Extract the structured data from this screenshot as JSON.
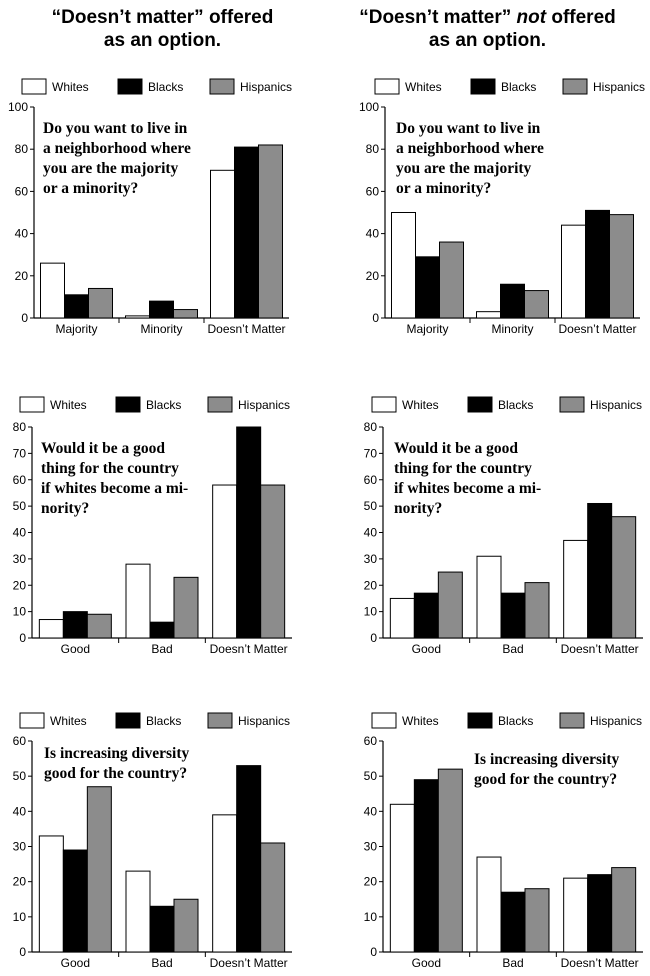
{
  "column_titles": [
    {
      "line1_start": "“Doesn’t matter”",
      "line1_em": "",
      "line1_end": " offered",
      "line2": "as an option."
    },
    {
      "line1_start": "“Doesn’t matter”",
      "line1_em": "not",
      "line1_end": " offered",
      "line2": "as an option."
    }
  ],
  "legend": [
    {
      "name": "Whites",
      "color": "#ffffff"
    },
    {
      "name": "Blacks",
      "color": "#000000"
    },
    {
      "name": "Hispanics",
      "color": "#8c8c8c"
    }
  ],
  "chart_data": [
    {
      "type": "bar",
      "question": [
        "Do you want to live in",
        "a neighborhood where",
        "you are the majority",
        "or a minority?"
      ],
      "categories": [
        "Majority",
        "Minority",
        "Doesn’t Matter"
      ],
      "ylim": [
        0,
        100
      ],
      "yticks": [
        0,
        20,
        40,
        60,
        80,
        100
      ],
      "series": [
        {
          "name": "Whites",
          "values": [
            26,
            1,
            70
          ]
        },
        {
          "name": "Blacks",
          "values": [
            11,
            8,
            81
          ]
        },
        {
          "name": "Hispanics",
          "values": [
            14,
            4,
            82
          ]
        }
      ]
    },
    {
      "type": "bar",
      "question": [
        "Do you want to live in",
        "a neighborhood where",
        "you are the majority",
        "or a minority?"
      ],
      "categories": [
        "Majority",
        "Minority",
        "Doesn’t Matter"
      ],
      "ylim": [
        0,
        100
      ],
      "yticks": [
        0,
        20,
        40,
        60,
        80,
        100
      ],
      "series": [
        {
          "name": "Whites",
          "values": [
            50,
            3,
            44
          ]
        },
        {
          "name": "Blacks",
          "values": [
            29,
            16,
            51
          ]
        },
        {
          "name": "Hispanics",
          "values": [
            36,
            13,
            49
          ]
        }
      ]
    },
    {
      "type": "bar",
      "question": [
        "Would it be a good",
        "thing for the country",
        "if whites become a mi-",
        "nority?"
      ],
      "categories": [
        "Good",
        "Bad",
        "Doesn’t Matter"
      ],
      "ylim": [
        0,
        80
      ],
      "yticks": [
        0,
        10,
        20,
        30,
        40,
        50,
        60,
        70,
        80
      ],
      "series": [
        {
          "name": "Whites",
          "values": [
            7,
            28,
            58
          ]
        },
        {
          "name": "Blacks",
          "values": [
            10,
            6,
            80
          ]
        },
        {
          "name": "Hispanics",
          "values": [
            9,
            23,
            58
          ]
        }
      ]
    },
    {
      "type": "bar",
      "question": [
        "Would it be a good",
        "thing for the country",
        "if whites become a mi-",
        "nority?"
      ],
      "categories": [
        "Good",
        "Bad",
        "Doesn’t Matter"
      ],
      "ylim": [
        0,
        80
      ],
      "yticks": [
        0,
        10,
        20,
        30,
        40,
        50,
        60,
        70,
        80
      ],
      "series": [
        {
          "name": "Whites",
          "values": [
            15,
            31,
            37
          ]
        },
        {
          "name": "Blacks",
          "values": [
            17,
            17,
            51
          ]
        },
        {
          "name": "Hispanics",
          "values": [
            25,
            21,
            46
          ]
        }
      ]
    },
    {
      "type": "bar",
      "question": [
        "Is increasing diversity",
        "good for the country?"
      ],
      "categories": [
        "Good",
        "Bad",
        "Doesn’t Matter"
      ],
      "ylim": [
        0,
        60
      ],
      "yticks": [
        0,
        10,
        20,
        30,
        40,
        50,
        60
      ],
      "series": [
        {
          "name": "Whites",
          "values": [
            33,
            23,
            39
          ]
        },
        {
          "name": "Blacks",
          "values": [
            29,
            13,
            53
          ]
        },
        {
          "name": "Hispanics",
          "values": [
            47,
            15,
            31
          ]
        }
      ]
    },
    {
      "type": "bar",
      "question": [
        "Is increasing diversity",
        "good for the country?"
      ],
      "categories": [
        "Good",
        "Bad",
        "Doesn’t Matter"
      ],
      "ylim": [
        0,
        60
      ],
      "yticks": [
        0,
        10,
        20,
        30,
        40,
        50,
        60
      ],
      "series": [
        {
          "name": "Whites",
          "values": [
            42,
            27,
            21
          ]
        },
        {
          "name": "Blacks",
          "values": [
            49,
            17,
            22
          ]
        },
        {
          "name": "Hispanics",
          "values": [
            52,
            18,
            24
          ]
        }
      ]
    }
  ]
}
